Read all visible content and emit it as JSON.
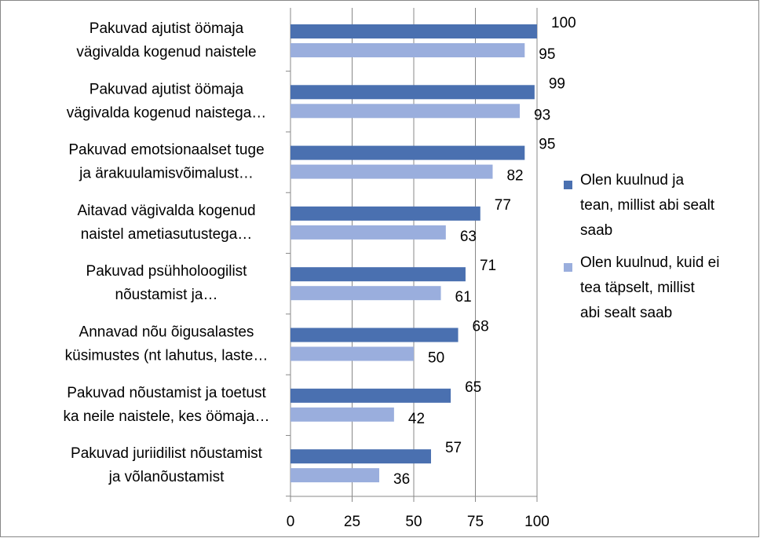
{
  "chart_data": {
    "type": "barh",
    "categories": [
      "Pakuvad ajutist öömaja\nvägivalda kogenud naistele",
      "Pakuvad ajutist öömaja\nvägivalda kogenud naistega…",
      "Pakuvad emotsionaalset tuge\nja ärakuulamisvõimalust…",
      "Aitavad vägivalda kogenud\nnaistel ametiasutustega…",
      "Pakuvad psühholoogilist\nnõustamist ja…",
      "Annavad nõu õigusalastes\nküsimustes (nt lahutus, laste…",
      "Pakuvad nõustamist ja toetust\nka neile naistele, kes öömaja…",
      "Pakuvad juriidilist nõustamist\nja võlanõustamist"
    ],
    "series": [
      {
        "name": "Olen kuulnud ja\ntean, millist abi sealt\nsaab",
        "color": "#4a70b0",
        "values": [
          100,
          99,
          95,
          77,
          71,
          68,
          65,
          57
        ]
      },
      {
        "name": "Olen kuulnud, kuid ei\ntea täpselt, millist\nabi sealt saab",
        "color": "#9aaedd",
        "values": [
          95,
          93,
          82,
          63,
          61,
          50,
          42,
          36
        ]
      }
    ],
    "xlim": [
      0,
      100
    ],
    "xticks": [
      0,
      25,
      50,
      75,
      100
    ],
    "grid": true,
    "legend": "right"
  }
}
